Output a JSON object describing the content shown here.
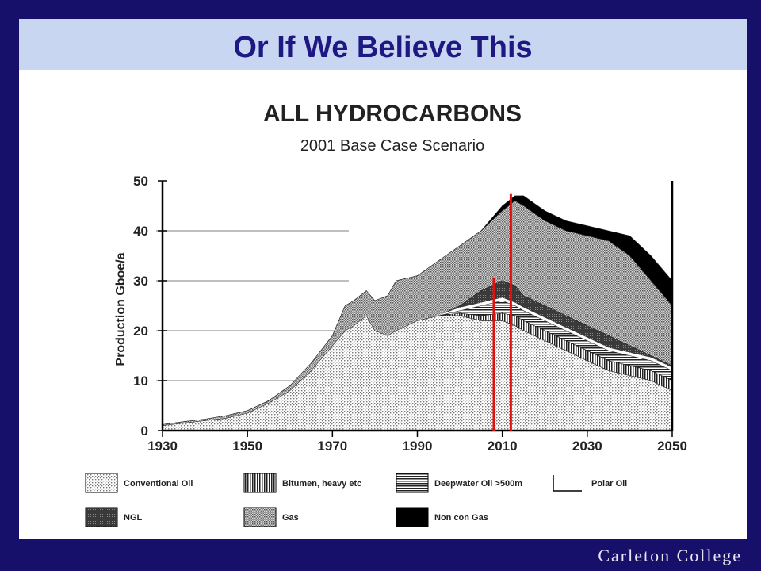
{
  "slide": {
    "title": "Or If We Believe This",
    "brand": "Carleton College"
  },
  "colors": {
    "background": "#16106a",
    "title_bar": "#c9d6f2",
    "title_text": "#1e1882",
    "marker_lines": "#e01010"
  },
  "chart_data": {
    "type": "area",
    "title": "ALL HYDROCARBONS",
    "subtitle": "2001 Base Case Scenario",
    "ylabel": "Production Gboe/a",
    "xlabel": "",
    "xlim": [
      1930,
      2050
    ],
    "ylim": [
      0,
      50
    ],
    "x_ticks": [
      "1930",
      "1950",
      "1970",
      "1990",
      "2010",
      "2030",
      "2050"
    ],
    "y_ticks": [
      "0",
      "10",
      "20",
      "30",
      "40",
      "50"
    ],
    "x": [
      1930,
      1935,
      1940,
      1945,
      1950,
      1955,
      1960,
      1965,
      1970,
      1973,
      1975,
      1978,
      1980,
      1983,
      1985,
      1990,
      1995,
      2000,
      2005,
      2010,
      2013,
      2015,
      2020,
      2025,
      2030,
      2035,
      2040,
      2045,
      2050
    ],
    "stacked_cumulative_top": [
      {
        "name": "Conventional Oil",
        "pattern": "dots-light",
        "values": [
          1,
          1.5,
          2,
          2.5,
          3.5,
          5.5,
          8,
          12,
          17,
          20,
          21,
          23,
          20,
          19,
          20,
          22,
          23,
          23,
          22,
          22,
          21,
          20,
          18,
          16,
          14,
          12,
          11,
          10,
          8
        ]
      },
      {
        "name": "Bitumen, heavy etc",
        "pattern": "vertical-stripes",
        "values": [
          1,
          1.5,
          2,
          2.5,
          3.5,
          5.5,
          8,
          12,
          17,
          20,
          21,
          23,
          20,
          19,
          20,
          22,
          23,
          23.5,
          23,
          23.5,
          23,
          22,
          20,
          18,
          16,
          14,
          13,
          12,
          10
        ]
      },
      {
        "name": "Deepwater Oil >500m",
        "pattern": "horizontal-stripes",
        "values": [
          1,
          1.5,
          2,
          2.5,
          3.5,
          5.5,
          8,
          12,
          17,
          20,
          21,
          23,
          20,
          19,
          20,
          22,
          23,
          24,
          25,
          26,
          25,
          24,
          22,
          20,
          18,
          16,
          15,
          14,
          12
        ]
      },
      {
        "name": "Polar Oil",
        "pattern": "line",
        "values": [
          1,
          1.5,
          2,
          2.5,
          3.5,
          5.5,
          8,
          12,
          17,
          20,
          21,
          23,
          20,
          19,
          20,
          22,
          23,
          24.5,
          25.5,
          26.5,
          25.5,
          24.5,
          22.5,
          20.5,
          18.5,
          16.5,
          15.5,
          14.5,
          12.5
        ]
      },
      {
        "name": "NGL",
        "pattern": "dark-grid",
        "values": [
          1,
          1.5,
          2,
          2.5,
          3.5,
          5.5,
          8,
          12,
          17,
          20,
          21,
          23,
          20,
          19,
          20,
          22,
          23,
          25,
          28,
          30,
          29,
          27,
          25,
          23,
          21,
          19,
          17,
          15,
          13
        ]
      },
      {
        "name": "Gas",
        "pattern": "dots-dense",
        "values": [
          1.2,
          1.8,
          2.3,
          3,
          4,
          6,
          9,
          13.5,
          19,
          25,
          26,
          28,
          26,
          27,
          30,
          31,
          34,
          37,
          40,
          44,
          46,
          45,
          42,
          40,
          39,
          38,
          35,
          30,
          25
        ]
      },
      {
        "name": "Non con Gas",
        "pattern": "solid-black",
        "values": [
          1.2,
          1.8,
          2.3,
          3,
          4,
          6,
          9,
          13.5,
          19,
          25,
          26,
          28,
          26,
          27,
          30,
          31,
          34,
          37,
          40,
          45,
          47,
          47,
          44,
          42,
          41,
          40,
          39,
          35,
          30
        ]
      }
    ],
    "reference_lines": [
      {
        "x": 2008,
        "color": "#e01010"
      },
      {
        "x": 2012,
        "color": "#e01010"
      }
    ],
    "legend": {
      "placement": "bottom",
      "entries": [
        {
          "label": "Conventional Oil",
          "pattern": "dots-light"
        },
        {
          "label": "Bitumen, heavy etc",
          "pattern": "vertical-stripes"
        },
        {
          "label": "Deepwater Oil >500m",
          "pattern": "horizontal-stripes"
        },
        {
          "label": "Polar Oil",
          "pattern": "line"
        },
        {
          "label": "NGL",
          "pattern": "dark-grid"
        },
        {
          "label": "Gas",
          "pattern": "dots-dense"
        },
        {
          "label": "Non con Gas",
          "pattern": "solid-black"
        }
      ]
    }
  }
}
